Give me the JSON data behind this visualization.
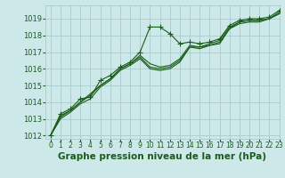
{
  "title": "Graphe pression niveau de la mer (hPa)",
  "background_color": "#cce8e8",
  "grid_color": "#aacccc",
  "line_color": "#1a5c1a",
  "xlim": [
    -0.5,
    23
  ],
  "ylim": [
    1011.8,
    1019.8
  ],
  "yticks": [
    1012,
    1013,
    1014,
    1015,
    1016,
    1017,
    1018,
    1019
  ],
  "xticks": [
    0,
    1,
    2,
    3,
    4,
    5,
    6,
    7,
    8,
    9,
    10,
    11,
    12,
    13,
    14,
    15,
    16,
    17,
    18,
    19,
    20,
    21,
    22,
    23
  ],
  "series": [
    [
      1012.0,
      1013.3,
      1013.6,
      1014.2,
      1014.3,
      1015.3,
      1015.6,
      1016.1,
      1016.4,
      1017.0,
      1018.5,
      1018.5,
      1018.1,
      1017.5,
      1017.6,
      1017.5,
      1017.6,
      1017.8,
      1018.6,
      1018.9,
      1019.0,
      1019.0,
      1019.1,
      1019.5
    ],
    [
      1012.0,
      1013.2,
      1013.5,
      1014.0,
      1014.4,
      1015.0,
      1015.4,
      1016.0,
      1016.3,
      1016.8,
      1016.3,
      1016.1,
      1016.2,
      1016.6,
      1017.4,
      1017.3,
      1017.5,
      1017.7,
      1018.5,
      1018.8,
      1018.9,
      1018.9,
      1019.0,
      1019.4
    ],
    [
      1012.0,
      1013.1,
      1013.5,
      1014.0,
      1014.5,
      1015.0,
      1015.4,
      1016.0,
      1016.3,
      1016.7,
      1016.1,
      1016.0,
      1016.1,
      1016.5,
      1017.3,
      1017.3,
      1017.4,
      1017.6,
      1018.4,
      1018.8,
      1018.9,
      1018.9,
      1019.0,
      1019.3
    ],
    [
      1012.0,
      1013.0,
      1013.4,
      1013.9,
      1014.2,
      1014.9,
      1015.3,
      1015.9,
      1016.2,
      1016.6,
      1016.0,
      1015.9,
      1016.0,
      1016.4,
      1017.3,
      1017.2,
      1017.4,
      1017.5,
      1018.4,
      1018.7,
      1018.8,
      1018.8,
      1019.0,
      1019.3
    ]
  ],
  "marker_series": 0,
  "marker_style": "+",
  "marker_size": 4,
  "title_fontsize": 7.5,
  "tick_fontsize": 6,
  "xlabel_color": "#1a5c1a",
  "figsize": [
    3.2,
    2.0
  ],
  "dpi": 100
}
